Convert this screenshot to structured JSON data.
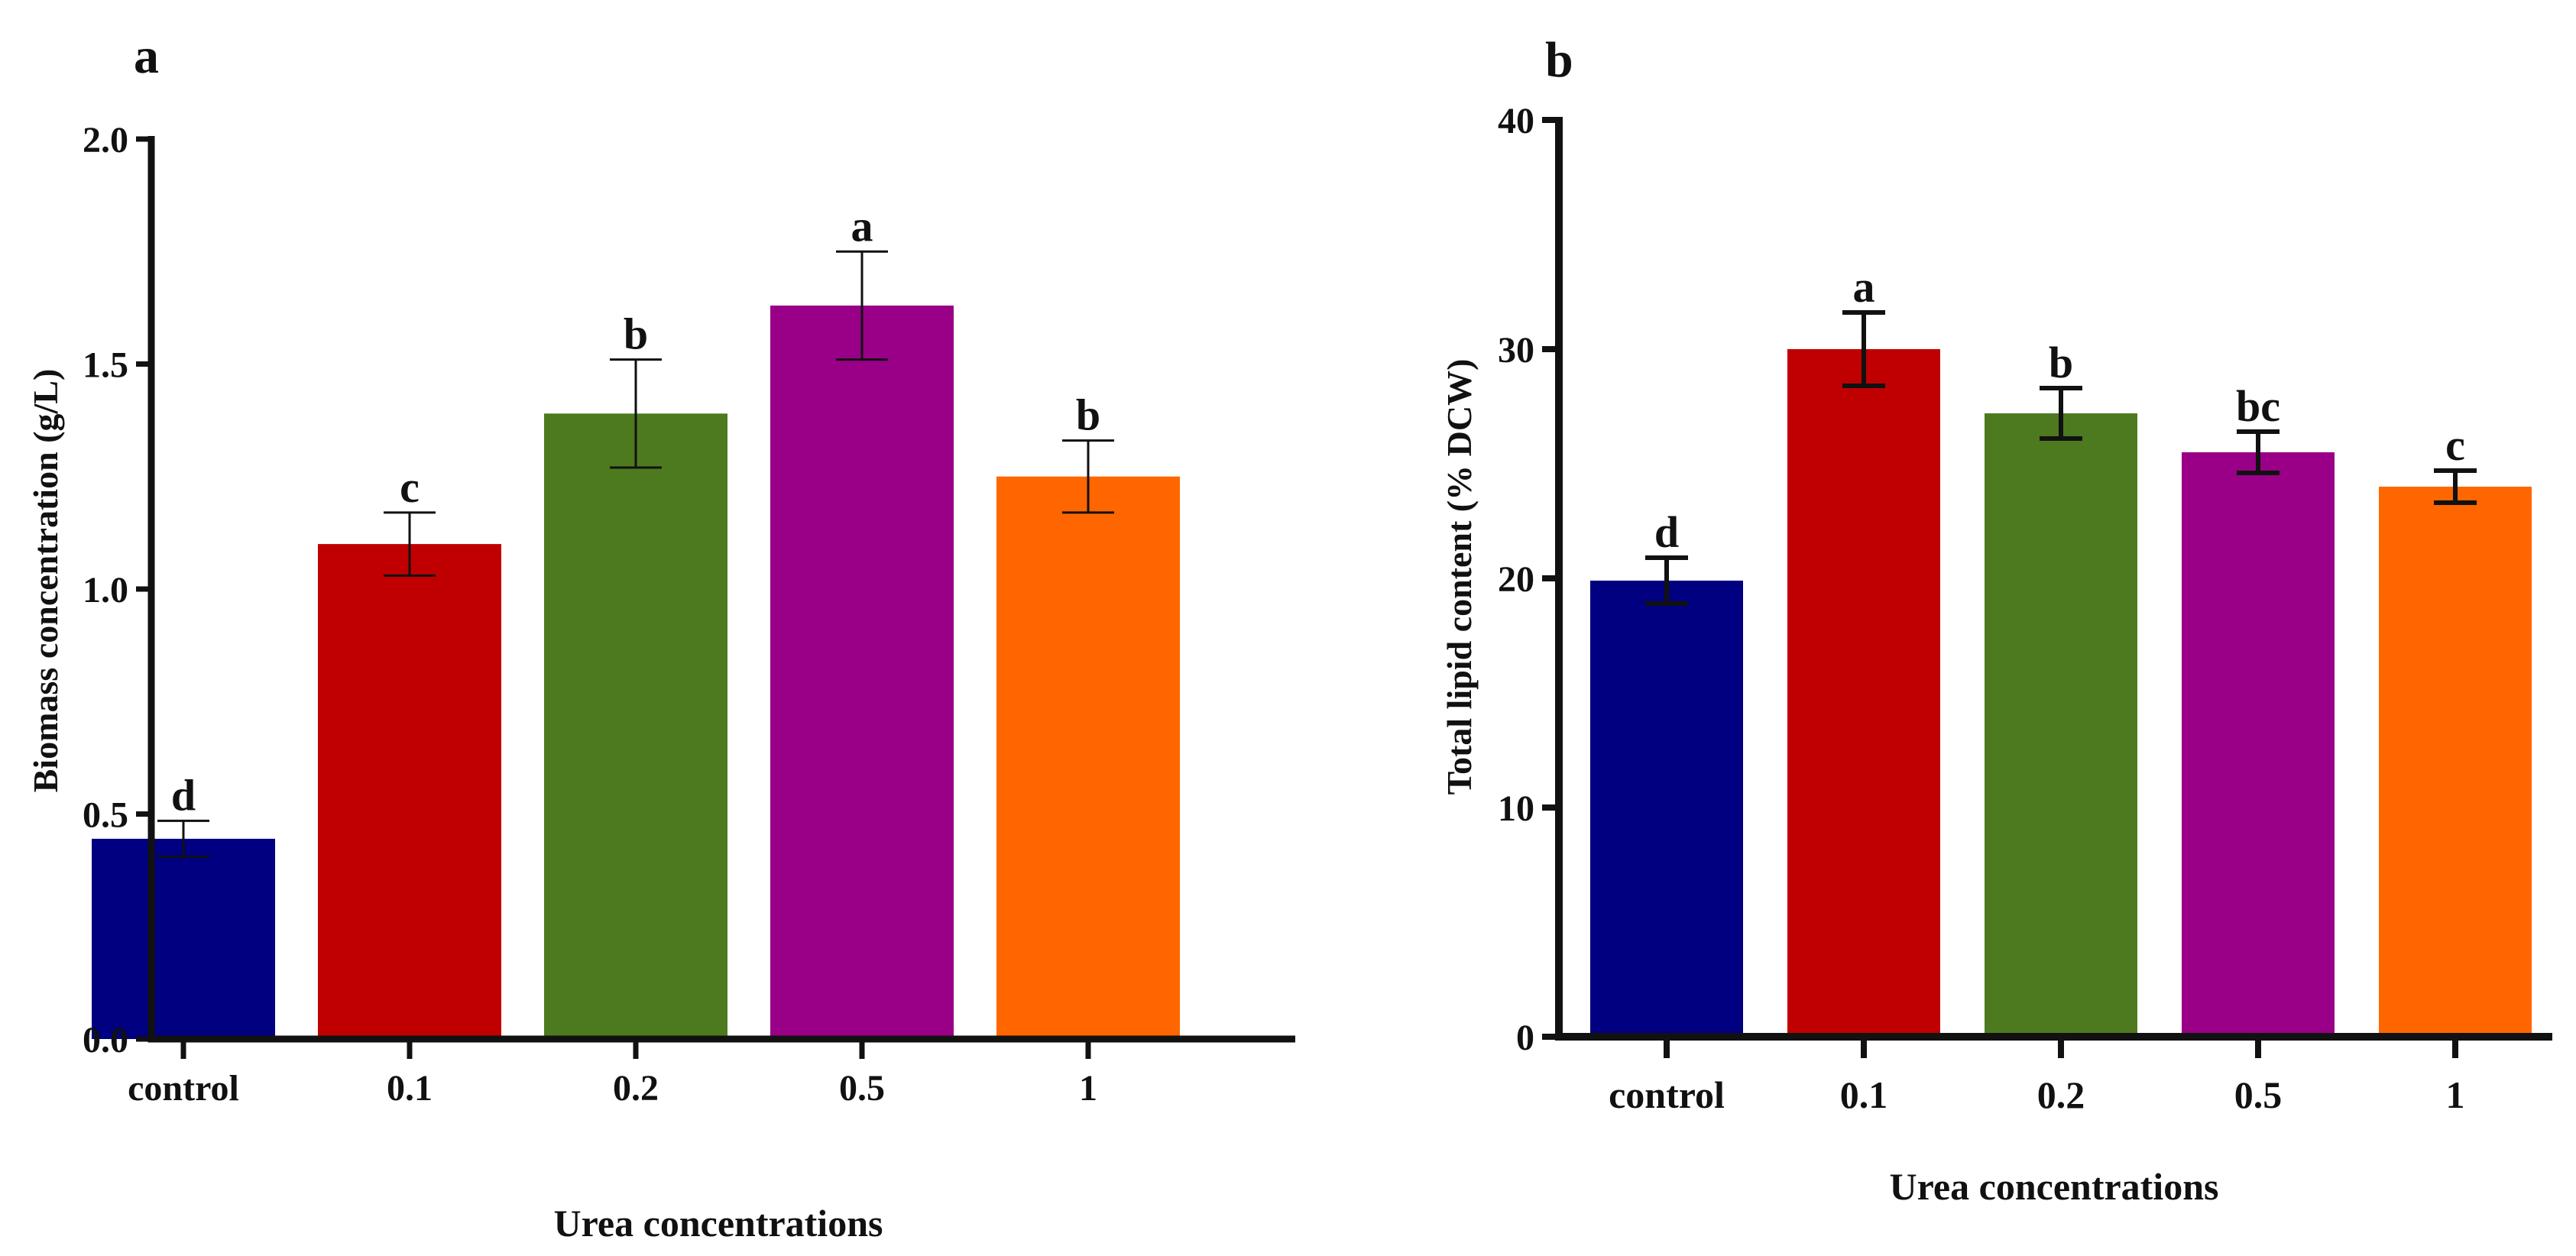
{
  "chart_data": [
    {
      "panel_label": "a",
      "type": "bar",
      "title": "",
      "categories": [
        "control",
        "0.1",
        "0.2",
        "0.5",
        "1"
      ],
      "values": [
        0.445,
        1.1,
        1.39,
        1.63,
        1.25
      ],
      "errors": [
        0.04,
        0.07,
        0.12,
        0.12,
        0.08
      ],
      "letters": [
        "d",
        "c",
        "b",
        "a",
        "b"
      ],
      "colors": [
        "#000080",
        "#C00000",
        "#4E7A1F",
        "#990087",
        "#FF6600"
      ],
      "xlabel": "Urea concentrations",
      "ylabel": "Biomass concentration (g/L)",
      "ylim": [
        0,
        2.0
      ],
      "yticks": [
        0,
        0.5,
        1.0,
        1.5,
        2.0
      ],
      "ytick_labels": [
        "0.0",
        "0.5",
        "1.0",
        "1.5",
        "2.0"
      ],
      "grid": false,
      "legend": "none"
    },
    {
      "panel_label": "b",
      "type": "bar",
      "title": "",
      "categories": [
        "control",
        "0.1",
        "0.2",
        "0.5",
        "1"
      ],
      "values": [
        19.9,
        30.0,
        27.2,
        25.5,
        24.0
      ],
      "errors": [
        1.0,
        1.6,
        1.1,
        0.9,
        0.7
      ],
      "letters": [
        "d",
        "a",
        "b",
        "bc",
        "c"
      ],
      "colors": [
        "#000080",
        "#C00000",
        "#4E7A1F",
        "#990087",
        "#FF6600"
      ],
      "xlabel": "Urea concentrations",
      "ylabel": "Total lipid content (% DCW)",
      "ylim": [
        0,
        40
      ],
      "yticks": [
        0,
        10,
        20,
        30,
        40
      ],
      "ytick_labels": [
        "0",
        "10",
        "20",
        "30",
        "40"
      ],
      "grid": false,
      "legend": "none"
    }
  ]
}
